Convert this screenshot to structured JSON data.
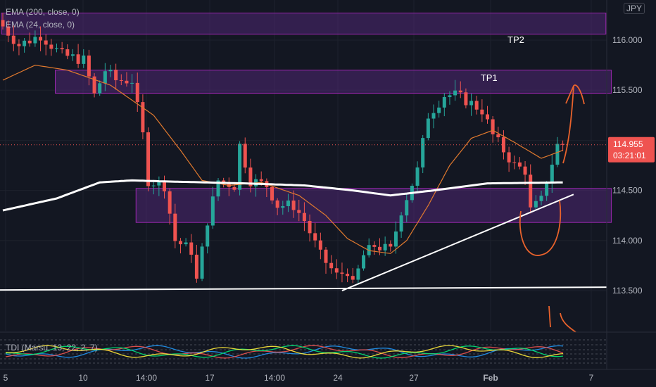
{
  "indicators": {
    "ema200": "EMA (200, close, 0)",
    "ema24": "EMA (24, close, 0)",
    "tdi": "TDI (Marsu, 13, 22, 2, 7)"
  },
  "currency_badge": "JPY",
  "price_tag": {
    "value": "114.955",
    "countdown": "03:21:01"
  },
  "colors": {
    "background": "#131722",
    "grid": "#1e222d",
    "up": "#26a69a",
    "down": "#ef5350",
    "zone_fill": "#5b2a86",
    "zone_border": "#9c27b0",
    "ema200": "#ffffff",
    "ema24": "#e0792e",
    "drawing": "#e8622c"
  },
  "chart_data": {
    "type": "candlestick",
    "y_range": [
      113.1,
      116.4
    ],
    "y_ticks": [
      "116.000",
      "115.500",
      "115.000",
      "114.500",
      "114.000",
      "113.500"
    ],
    "y_tick_values": [
      116.0,
      115.5,
      115.0,
      114.5,
      114.0,
      113.5
    ],
    "x_ticks": [
      "5",
      "10",
      "14:00",
      "17",
      "14:00",
      "24",
      "27",
      "Feb",
      "7"
    ],
    "candle_count": 108,
    "price_path": [
      [
        0,
        116.2
      ],
      [
        4,
        115.95
      ],
      [
        8,
        116.05
      ],
      [
        12,
        115.85
      ],
      [
        16,
        115.8
      ],
      [
        18,
        115.45
      ],
      [
        20,
        115.7
      ],
      [
        22,
        115.6
      ],
      [
        25,
        115.6
      ],
      [
        27,
        115.05
      ],
      [
        28,
        114.6
      ],
      [
        31,
        114.55
      ],
      [
        33,
        114.0
      ],
      [
        36,
        113.9
      ],
      [
        37,
        113.6
      ],
      [
        39,
        114.2
      ],
      [
        41,
        114.6
      ],
      [
        44,
        114.55
      ],
      [
        45,
        114.95
      ],
      [
        47,
        114.6
      ],
      [
        50,
        114.55
      ],
      [
        52,
        114.35
      ],
      [
        55,
        114.35
      ],
      [
        57,
        114.2
      ],
      [
        60,
        113.85
      ],
      [
        63,
        113.65
      ],
      [
        65,
        113.7
      ],
      [
        66,
        113.55
      ],
      [
        68,
        113.85
      ],
      [
        70,
        113.95
      ],
      [
        73,
        113.9
      ],
      [
        75,
        114.3
      ],
      [
        78,
        114.7
      ],
      [
        80,
        115.25
      ],
      [
        83,
        115.45
      ],
      [
        85,
        115.45
      ],
      [
        87,
        115.4
      ],
      [
        90,
        115.3
      ],
      [
        92,
        115.05
      ],
      [
        94,
        114.9
      ],
      [
        96,
        114.75
      ],
      [
        98,
        114.7
      ],
      [
        99,
        114.3
      ],
      [
        101,
        114.4
      ],
      [
        102,
        114.6
      ],
      [
        104,
        114.95
      ]
    ],
    "ema200": [
      [
        0,
        114.3
      ],
      [
        10,
        114.42
      ],
      [
        18,
        114.58
      ],
      [
        24,
        114.6
      ],
      [
        30,
        114.59
      ],
      [
        45,
        114.57
      ],
      [
        56,
        114.55
      ],
      [
        65,
        114.5
      ],
      [
        72,
        114.45
      ],
      [
        80,
        114.5
      ],
      [
        90,
        114.57
      ],
      [
        104,
        114.58
      ]
    ],
    "ema24": [
      [
        0,
        115.6
      ],
      [
        6,
        115.75
      ],
      [
        12,
        115.7
      ],
      [
        20,
        115.55
      ],
      [
        28,
        115.25
      ],
      [
        33,
        114.9
      ],
      [
        37,
        114.6
      ],
      [
        42,
        114.55
      ],
      [
        48,
        114.58
      ],
      [
        55,
        114.45
      ],
      [
        60,
        114.25
      ],
      [
        64,
        114.02
      ],
      [
        68,
        113.9
      ],
      [
        72,
        113.87
      ],
      [
        75,
        114.0
      ],
      [
        79,
        114.35
      ],
      [
        83,
        114.75
      ],
      [
        87,
        115.02
      ],
      [
        91,
        115.1
      ],
      [
        95,
        114.98
      ],
      [
        100,
        114.82
      ],
      [
        104,
        114.9
      ]
    ],
    "zones": [
      {
        "label": "",
        "x_from": 0,
        "x_to": 112,
        "y_from": 116.27,
        "y_to": 116.06
      },
      {
        "label": "TP1",
        "x_from": 10,
        "x_to": 113,
        "y_from": 115.7,
        "y_to": 115.47
      },
      {
        "label": "",
        "x_from": 25,
        "x_to": 113,
        "y_from": 114.52,
        "y_to": 114.18
      }
    ],
    "annotations": [
      {
        "text": "TP2",
        "x": 97,
        "y": 116.0
      },
      {
        "text": "TP1",
        "x": 92,
        "y": 115.62
      }
    ],
    "support_line": {
      "y": 113.52
    },
    "trendline": {
      "from": [
        63,
        113.5
      ],
      "to": [
        106,
        114.46
      ]
    },
    "last_price": 114.955
  }
}
